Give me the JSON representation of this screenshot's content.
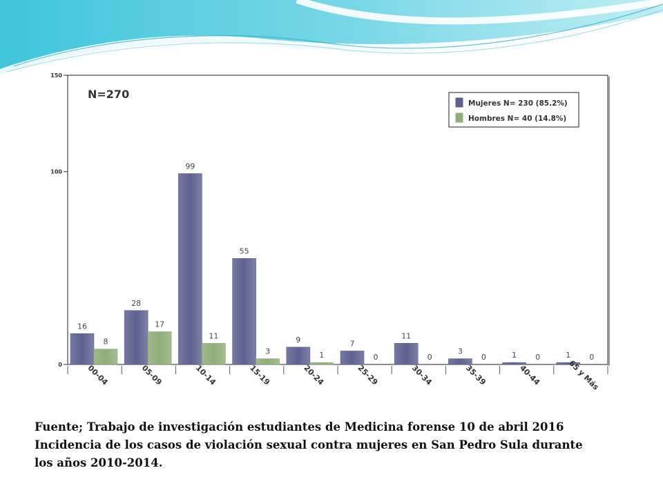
{
  "chart_data": {
    "type": "bar",
    "title": "N=270",
    "categories": [
      "00-04",
      "05-09",
      "10-14",
      "15-19",
      "20-24",
      "25-29",
      "30-34",
      "35-39",
      "40-44",
      "65 y Más"
    ],
    "series": [
      {
        "name": "Mujeres N= 230 (85.2%)",
        "color": "#5e6190",
        "values": [
          16,
          28,
          99,
          55,
          9,
          7,
          11,
          3,
          1,
          1
        ]
      },
      {
        "name": "Hombres N= 40 (14.8%)",
        "color": "#8fad78",
        "values": [
          8,
          17,
          11,
          3,
          1,
          0,
          0,
          0,
          0,
          0
        ]
      }
    ],
    "yticks": [
      0,
      100,
      150
    ],
    "ylim": [
      0,
      150
    ],
    "legend_position": "top-right"
  },
  "caption": {
    "line1": "Fuente; Trabajo de investigación estudiantes de Medicina forense 10 de abril 2016",
    "line2": "Incidencia de los casos de violación sexual contra mujeres en San Pedro Sula durante",
    "line3": "los años 2010-2014."
  }
}
